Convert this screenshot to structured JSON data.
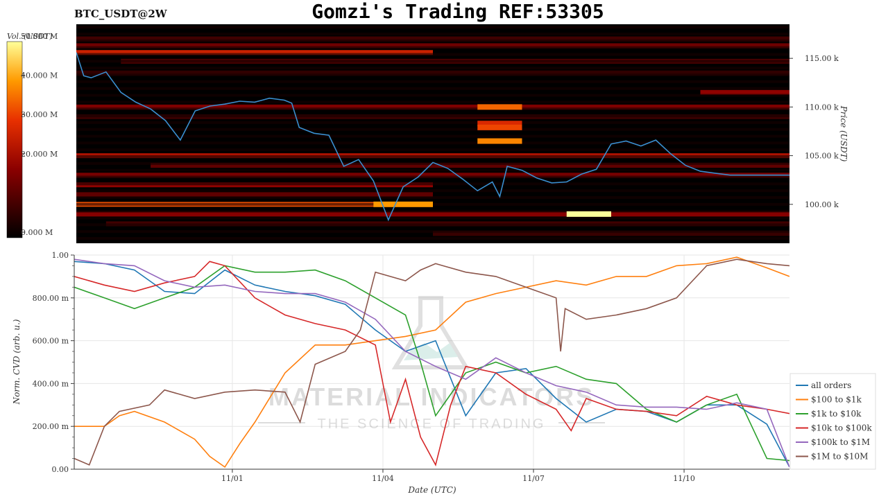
{
  "header": {
    "title": "Gomzi's Trading REF:53305",
    "symbol": "BTC_USDT@2W"
  },
  "watermark": {
    "main": "MATERIAL INDICATORS",
    "sub": "THE SCIENCE OF TRADING"
  },
  "colors": {
    "price_line": "#3a8fd0",
    "series": [
      "#1f77b4",
      "#ff7f0e",
      "#2ca02c",
      "#d62728",
      "#9467bd",
      "#8c564b"
    ]
  },
  "chart_data": [
    {
      "type": "heatmap",
      "title": "Gomzi's Trading REF:53305",
      "symbol": "BTC_USDT@2W",
      "ylabel": "Price (USDT)",
      "ytick_labels": [
        "100.00 k",
        "105.00 k",
        "110.00 k",
        "115.00 k"
      ],
      "yticks": [
        100000,
        105000,
        110000,
        115000
      ],
      "ylim": [
        96000,
        118500
      ],
      "colorbar": {
        "label": "Vol. (USDT)",
        "tick_labels": [
          "0.000 M",
          "20.000 M",
          "30.000 M",
          "40.000 M",
          "50.000 M"
        ],
        "ticks": [
          0,
          20,
          30,
          40,
          50
        ],
        "range": [
          0,
          50
        ],
        "colormap": "hot"
      },
      "price_series": {
        "t": [
          0,
          0.5,
          1,
          2,
          3,
          4,
          5,
          6,
          7,
          8,
          9,
          10,
          11,
          12,
          13,
          14,
          14.5,
          15,
          16,
          17,
          18,
          19,
          20,
          21,
          22,
          23,
          24,
          25,
          26,
          27,
          28,
          28.5,
          29,
          30,
          31,
          32,
          33,
          34,
          35,
          36,
          37,
          38,
          39,
          40,
          41,
          42,
          43,
          44,
          45,
          46,
          47,
          48
        ],
        "price": [
          115600,
          113200,
          113000,
          113600,
          111500,
          110500,
          109800,
          108600,
          106600,
          109600,
          110100,
          110300,
          110600,
          110500,
          110900,
          110700,
          110400,
          107900,
          107300,
          107100,
          103900,
          104600,
          102400,
          98400,
          101800,
          102800,
          104300,
          103700,
          102600,
          101400,
          102300,
          100800,
          103900,
          103500,
          102700,
          102200,
          102300,
          103100,
          103600,
          106200,
          106500,
          106000,
          106600,
          105200,
          104000,
          103400,
          103200,
          103000,
          103000,
          103000,
          103000,
          103000
        ]
      },
      "liquidity_bands": [
        {
          "price": 117000,
          "t": [
            0,
            48
          ],
          "volume": 8
        },
        {
          "price": 116300,
          "t": [
            0,
            48
          ],
          "volume": 14
        },
        {
          "price": 115600,
          "t": [
            0,
            24
          ],
          "volume": 26
        },
        {
          "price": 114700,
          "t": [
            3,
            48
          ],
          "volume": 10
        },
        {
          "price": 113500,
          "t": [
            0,
            48
          ],
          "volume": 6
        },
        {
          "price": 111500,
          "t": [
            42,
            48
          ],
          "volume": 18
        },
        {
          "price": 110000,
          "t": [
            0,
            48
          ],
          "volume": 16
        },
        {
          "price": 109000,
          "t": [
            0,
            48
          ],
          "volume": 7
        },
        {
          "price": 105000,
          "t": [
            0,
            48
          ],
          "volume": 22
        },
        {
          "price": 104000,
          "t": [
            5,
            48
          ],
          "volume": 12
        },
        {
          "price": 103000,
          "t": [
            0,
            48
          ],
          "volume": 15
        },
        {
          "price": 102000,
          "t": [
            0,
            24
          ],
          "volume": 18
        },
        {
          "price": 101000,
          "t": [
            0,
            24
          ],
          "volume": 12
        },
        {
          "price": 100000,
          "t": [
            0,
            24
          ],
          "volume": 33
        },
        {
          "price": 99000,
          "t": [
            0,
            48
          ],
          "volume": 17
        },
        {
          "price": 98000,
          "t": [
            2,
            48
          ],
          "volume": 8
        },
        {
          "price": 97000,
          "t": [
            24,
            48
          ],
          "volume": 7
        }
      ],
      "hotspots": [
        {
          "price": 110000,
          "t": [
            27,
            30
          ],
          "volume": 35
        },
        {
          "price": 108300,
          "t": [
            27,
            30
          ],
          "volume": 28
        },
        {
          "price": 107900,
          "t": [
            27,
            30
          ],
          "volume": 32
        },
        {
          "price": 106500,
          "t": [
            27,
            30
          ],
          "volume": 38
        },
        {
          "price": 100000,
          "t": [
            20,
            24
          ],
          "volume": 40
        },
        {
          "price": 99000,
          "t": [
            33,
            36
          ],
          "volume": 50
        }
      ]
    },
    {
      "type": "line",
      "xlabel": "Date (UTC)",
      "ylabel": "Norm. CVD (arb. u.)",
      "x_tick_labels": [
        "11/01",
        "11/04",
        "11/07",
        "11/10"
      ],
      "x_ticks": [
        10.5,
        20.5,
        30.5,
        40.5
      ],
      "y_tick_labels": [
        "0.00",
        "200.00 m",
        "400.00 m",
        "600.00 m",
        "800.00 m",
        "1.00"
      ],
      "y_ticks": [
        0,
        0.2,
        0.4,
        0.6,
        0.8,
        1.0
      ],
      "xlim": [
        0,
        47.5
      ],
      "ylim": [
        0,
        1
      ],
      "grid": true,
      "legend_position": "bottom-right",
      "series": [
        {
          "name": "all orders",
          "x": [
            0,
            2,
            4,
            6,
            8,
            10,
            12,
            14,
            16,
            18,
            20,
            22,
            24,
            26,
            28,
            30,
            32,
            34,
            36,
            38,
            40,
            42,
            44,
            46,
            47.5
          ],
          "y": [
            0.97,
            0.96,
            0.93,
            0.83,
            0.82,
            0.93,
            0.86,
            0.83,
            0.81,
            0.77,
            0.65,
            0.55,
            0.6,
            0.25,
            0.45,
            0.47,
            0.33,
            0.22,
            0.28,
            0.27,
            0.22,
            0.3,
            0.3,
            0.21,
            0.01
          ]
        },
        {
          "name": "$100 to $1k",
          "x": [
            0,
            2,
            3,
            4,
            6,
            8,
            9,
            10,
            11,
            12,
            14,
            16,
            18,
            20,
            22,
            24,
            26,
            28,
            30,
            32,
            34,
            36,
            38,
            40,
            42,
            44,
            46,
            47.5
          ],
          "y": [
            0.2,
            0.2,
            0.25,
            0.27,
            0.22,
            0.14,
            0.06,
            0.01,
            0.12,
            0.22,
            0.45,
            0.58,
            0.58,
            0.6,
            0.62,
            0.65,
            0.78,
            0.82,
            0.85,
            0.88,
            0.86,
            0.9,
            0.9,
            0.95,
            0.96,
            0.99,
            0.94,
            0.9
          ]
        },
        {
          "name": "$1k to $10k",
          "x": [
            0,
            2,
            4,
            6,
            8,
            10,
            12,
            14,
            16,
            18,
            20,
            22,
            23,
            24,
            26,
            28,
            30,
            32,
            34,
            36,
            38,
            40,
            42,
            44,
            45,
            46,
            47.5
          ],
          "y": [
            0.85,
            0.8,
            0.75,
            0.8,
            0.85,
            0.95,
            0.92,
            0.92,
            0.93,
            0.88,
            0.8,
            0.72,
            0.5,
            0.25,
            0.45,
            0.5,
            0.45,
            0.48,
            0.42,
            0.4,
            0.28,
            0.22,
            0.3,
            0.35,
            0.2,
            0.05,
            0.04
          ]
        },
        {
          "name": "$10k to $100k",
          "x": [
            0,
            2,
            4,
            6,
            8,
            9,
            10,
            12,
            14,
            16,
            18,
            20,
            21,
            22,
            23,
            24,
            25,
            26,
            28,
            30,
            32,
            33,
            34,
            36,
            38,
            40,
            42,
            44,
            46,
            47.5
          ],
          "y": [
            0.9,
            0.86,
            0.83,
            0.87,
            0.9,
            0.97,
            0.95,
            0.8,
            0.72,
            0.68,
            0.65,
            0.58,
            0.22,
            0.42,
            0.15,
            0.02,
            0.3,
            0.48,
            0.45,
            0.35,
            0.28,
            0.18,
            0.33,
            0.28,
            0.27,
            0.25,
            0.34,
            0.3,
            0.28,
            0.26
          ]
        },
        {
          "name": "$100k to $1M",
          "x": [
            0,
            2,
            4,
            6,
            8,
            10,
            12,
            14,
            16,
            18,
            20,
            22,
            24,
            26,
            28,
            30,
            32,
            34,
            36,
            38,
            40,
            42,
            44,
            46,
            47.5
          ],
          "y": [
            0.98,
            0.96,
            0.95,
            0.88,
            0.85,
            0.86,
            0.83,
            0.82,
            0.82,
            0.78,
            0.7,
            0.55,
            0.48,
            0.42,
            0.52,
            0.45,
            0.39,
            0.36,
            0.3,
            0.29,
            0.29,
            0.28,
            0.31,
            0.28,
            0.01
          ]
        },
        {
          "name": "$1M to $10M",
          "x": [
            0,
            1,
            2,
            3,
            5,
            6,
            8,
            10,
            12,
            14,
            15,
            16,
            18,
            19,
            20,
            22,
            23,
            24,
            26,
            28,
            30,
            32,
            32.3,
            32.6,
            34,
            36,
            38,
            40,
            42,
            44,
            46,
            47.5
          ],
          "y": [
            0.05,
            0.02,
            0.2,
            0.27,
            0.3,
            0.37,
            0.33,
            0.36,
            0.37,
            0.36,
            0.22,
            0.49,
            0.55,
            0.65,
            0.92,
            0.88,
            0.93,
            0.96,
            0.92,
            0.9,
            0.85,
            0.8,
            0.55,
            0.75,
            0.7,
            0.72,
            0.75,
            0.8,
            0.95,
            0.98,
            0.96,
            0.95
          ]
        }
      ]
    }
  ]
}
